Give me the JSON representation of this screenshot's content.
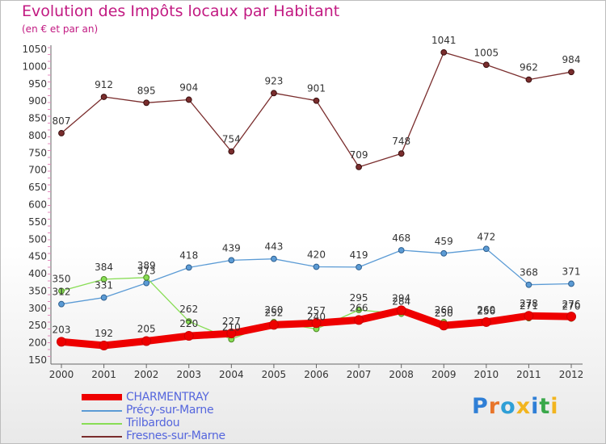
{
  "header": {
    "title": "Evolution des Impôts locaux par Habitant",
    "subtitle": "(en € et par an)"
  },
  "logo": {
    "text": "Proxiti"
  },
  "chart_data": {
    "type": "line",
    "title": "Evolution des Impôts locaux par Habitant",
    "subtitle": "(en € et par an)",
    "xlabel": "",
    "ylabel": "",
    "x": [
      "2000",
      "2001",
      "2002",
      "2003",
      "2004",
      "2005",
      "2006",
      "2007",
      "2008",
      "2009",
      "2010",
      "2011",
      "2012"
    ],
    "ylim": [
      150,
      1050
    ],
    "yticks": [
      150,
      200,
      250,
      300,
      350,
      400,
      450,
      500,
      550,
      600,
      650,
      700,
      750,
      800,
      850,
      900,
      950,
      1000,
      1050
    ],
    "grid": false,
    "legend_position": "bottom-left",
    "series": [
      {
        "name": "CHARMENTRAY",
        "color": "#ee0000",
        "values": [
          203,
          192,
          205,
          220,
          227,
          252,
          257,
          266,
          294,
          250,
          260,
          278,
          276
        ]
      },
      {
        "name": "Précy-sur-Marne",
        "color": "#5b9bd5",
        "values": [
          312,
          331,
          373,
          418,
          439,
          443,
          420,
          419,
          468,
          459,
          472,
          368,
          371
        ]
      },
      {
        "name": "Trilbardou",
        "color": "#88dd55",
        "values": [
          350,
          384,
          389,
          262,
          210,
          260,
          240,
          295,
          284,
          260,
          256,
          271,
          270
        ]
      },
      {
        "name": "Fresnes-sur-Marne",
        "color": "#7a2d2d",
        "values": [
          807,
          912,
          895,
          904,
          754,
          923,
          901,
          709,
          748,
          1041,
          1005,
          962,
          984
        ]
      }
    ]
  }
}
